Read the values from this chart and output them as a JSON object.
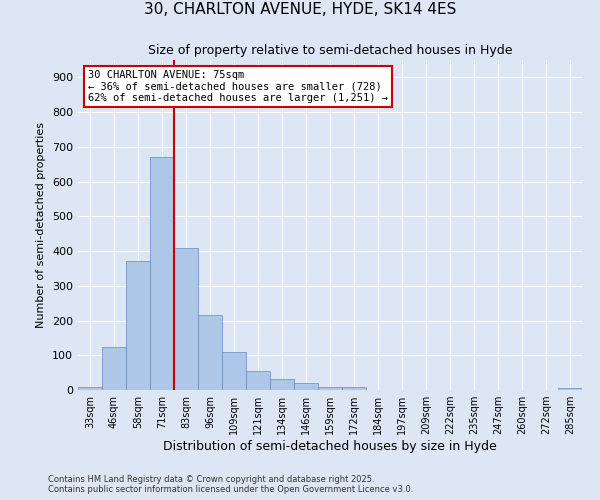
{
  "title": "30, CHARLTON AVENUE, HYDE, SK14 4ES",
  "subtitle": "Size of property relative to semi-detached houses in Hyde",
  "xlabel": "Distribution of semi-detached houses by size in Hyde",
  "ylabel": "Number of semi-detached properties",
  "bin_labels": [
    "33sqm",
    "46sqm",
    "58sqm",
    "71sqm",
    "83sqm",
    "96sqm",
    "109sqm",
    "121sqm",
    "134sqm",
    "146sqm",
    "159sqm",
    "172sqm",
    "184sqm",
    "197sqm",
    "209sqm",
    "222sqm",
    "235sqm",
    "247sqm",
    "260sqm",
    "272sqm",
    "285sqm"
  ],
  "bar_heights": [
    10,
    125,
    370,
    670,
    410,
    215,
    110,
    55,
    33,
    20,
    10,
    10,
    0,
    0,
    0,
    0,
    0,
    0,
    0,
    0,
    5
  ],
  "bar_color": "#aec6e8",
  "bar_edge_color": "#5b8cc8",
  "background_color": "#dce6f5",
  "grid_color": "#ffffff",
  "annotation_text": "30 CHARLTON AVENUE: 75sqm\n← 36% of semi-detached houses are smaller (728)\n62% of semi-detached houses are larger (1,251) →",
  "annotation_box_color": "#ffffff",
  "annotation_border_color": "#cc0000",
  "vline_color": "#cc0000",
  "ylim": [
    0,
    950
  ],
  "yticks": [
    0,
    100,
    200,
    300,
    400,
    500,
    600,
    700,
    800,
    900
  ],
  "footer_line1": "Contains HM Land Registry data © Crown copyright and database right 2025.",
  "footer_line2": "Contains public sector information licensed under the Open Government Licence v3.0."
}
